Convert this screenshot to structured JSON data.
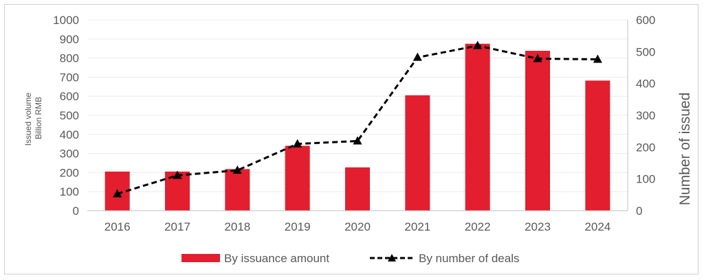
{
  "chart_data": {
    "type": "bar",
    "categories": [
      "2016",
      "2017",
      "2018",
      "2019",
      "2020",
      "2021",
      "2022",
      "2023",
      "2024"
    ],
    "series": [
      {
        "name": "By issuance amount",
        "type": "bar",
        "axis": "left",
        "color": "#e31e2e",
        "values": [
          205,
          205,
          218,
          340,
          227,
          605,
          875,
          838,
          682
        ]
      },
      {
        "name": "By number of deals",
        "type": "line",
        "axis": "right",
        "color": "#000000",
        "line_style": "dashed",
        "marker": "triangle",
        "values": [
          53,
          111,
          127,
          210,
          219,
          482,
          519,
          478,
          476
        ]
      }
    ],
    "ylabel": "Issued volume\nBillion RMB",
    "ylabel_lines": [
      "Issued volume",
      "Billion RMB"
    ],
    "ylim": [
      0,
      1000
    ],
    "yticks": [
      "0",
      "100",
      "200",
      "300",
      "400",
      "500",
      "600",
      "700",
      "800",
      "900",
      "1000"
    ],
    "y2label": "Number of issued",
    "y2lim": [
      0,
      600
    ],
    "y2ticks": [
      "0",
      "100",
      "200",
      "300",
      "400",
      "500",
      "600"
    ],
    "grid": true,
    "legend_position": "bottom"
  }
}
